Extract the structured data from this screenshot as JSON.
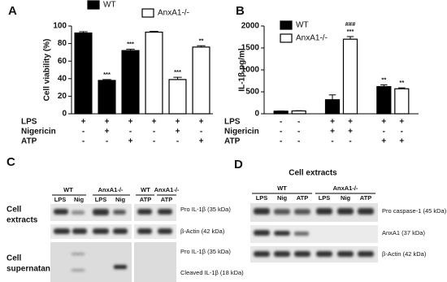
{
  "chart_data": [
    {
      "type": "bar",
      "panel_label": "A",
      "ylabel": "Cell viability (%)",
      "grouped": false,
      "ylim": [
        0,
        100
      ],
      "yticks": [
        0,
        20,
        40,
        60,
        80,
        100
      ],
      "series": [
        {
          "name": "WT",
          "color": "#000000",
          "values": [
            92,
            38,
            72
          ],
          "errors": [
            1.5,
            1,
            1.5
          ]
        },
        {
          "name": "AnxA1-/-",
          "color": "#ffffff",
          "values": [
            93,
            39,
            76
          ],
          "errors": [
            1,
            2.5,
            1.5
          ]
        }
      ],
      "annotations": [
        {
          "series": 0,
          "index": 1,
          "text": "***"
        },
        {
          "series": 0,
          "index": 2,
          "text": "***"
        },
        {
          "series": 1,
          "index": 1,
          "text": "***"
        },
        {
          "series": 1,
          "index": 2,
          "text": "**"
        }
      ],
      "conditions": [
        {
          "name": "LPS",
          "signs": [
            "+",
            "+",
            "+",
            "+",
            "+",
            "+"
          ]
        },
        {
          "name": "Nigericin",
          "signs": [
            "-",
            "+",
            "-",
            "-",
            "+",
            "-"
          ]
        },
        {
          "name": "ATP",
          "signs": [
            "-",
            "-",
            "+",
            "-",
            "-",
            "+"
          ]
        }
      ]
    },
    {
      "type": "bar",
      "panel_label": "B",
      "ylabel": "IL-1β pg/ml",
      "grouped": true,
      "ylim": [
        0,
        2000
      ],
      "yticks": [
        0,
        500,
        1000,
        1500,
        2000
      ],
      "series": [
        {
          "name": "WT",
          "color": "#000000",
          "values": [
            60,
            320,
            620
          ],
          "errors": [
            5,
            110,
            40
          ]
        },
        {
          "name": "AnxA1-/-",
          "color": "#ffffff",
          "values": [
            65,
            1700,
            570
          ],
          "errors": [
            5,
            60,
            20
          ]
        }
      ],
      "annotations": [
        {
          "series": 1,
          "index": 1,
          "text": "***"
        },
        {
          "series": 1,
          "index": 1,
          "text": "###"
        },
        {
          "series": 0,
          "index": 2,
          "text": "**"
        },
        {
          "series": 1,
          "index": 2,
          "text": "**"
        }
      ],
      "conditions": [
        {
          "name": "LPS",
          "signs": [
            "-",
            "-",
            "+",
            "+",
            "+",
            "+"
          ]
        },
        {
          "name": "Nigericin",
          "signs": [
            "-",
            "-",
            "+",
            "+",
            "-",
            "-"
          ]
        },
        {
          "name": "ATP",
          "signs": [
            "-",
            "-",
            "-",
            "-",
            "+",
            "+"
          ]
        }
      ]
    }
  ],
  "blots": {
    "C": {
      "panel_label": "C",
      "row_labels": [
        [
          "Cell",
          "extracts"
        ],
        [
          "Cell",
          "supernatants"
        ]
      ],
      "group_headers": [
        "WT",
        "AnxA1-/-",
        "WT",
        "AnxA1-/-"
      ],
      "lanes": [
        "LPS",
        "Nig",
        "LPS",
        "Nig",
        "ATP",
        "ATP"
      ],
      "band_labels": [
        "Pro IL-1β (35 kDa)",
        "β-Actin (42 kDa)",
        "Pro IL-1β (35 kDa)",
        "Cleaved IL-1β (18 kDa)"
      ]
    },
    "D": {
      "panel_label": "D",
      "title": "Cell extracts",
      "group_headers": [
        "WT",
        "AnxA1-/-"
      ],
      "lanes": [
        "LPS",
        "Nig",
        "ATP",
        "LPS",
        "Nig",
        "ATP"
      ],
      "band_labels": [
        "Pro caspase-1 (45 kDa)",
        "AnxA1 (37 kDa)",
        "β-Actin (42 kDa)"
      ]
    }
  }
}
